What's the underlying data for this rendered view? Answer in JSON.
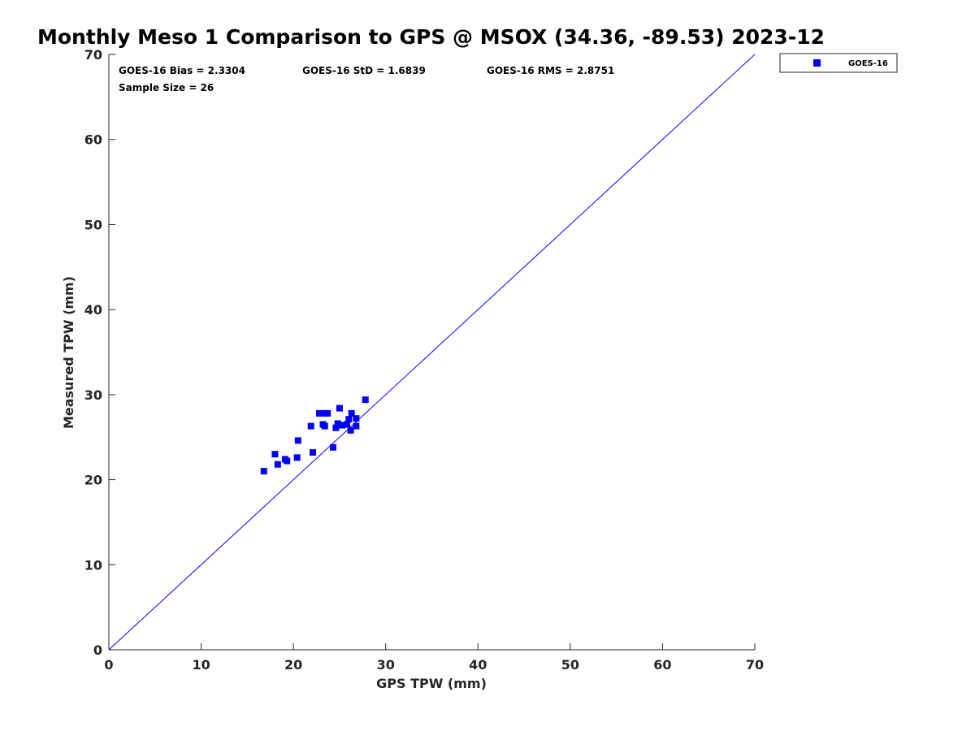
{
  "chart_data": {
    "type": "scatter",
    "title": "Monthly Meso 1 Comparison to GPS @ MSOX (34.36, -89.53) 2023-12",
    "xlabel": "GPS TPW (mm)",
    "ylabel": "Measured TPW (mm)",
    "xlim": [
      0,
      70
    ],
    "ylim": [
      0,
      70
    ],
    "xticks": [
      "0",
      "10",
      "20",
      "30",
      "40",
      "50",
      "60",
      "70"
    ],
    "yticks": [
      "0",
      "10",
      "20",
      "30",
      "40",
      "50",
      "60",
      "70"
    ],
    "grid": false,
    "legend_position": "top-right, outside",
    "stats": {
      "bias": "GOES-16 Bias = 2.3304",
      "std": "GOES-16 StD = 1.6839",
      "rms": "GOES-16 RMS = 2.8751",
      "sample_size": "Sample Size = 26"
    },
    "reference_line": {
      "x": [
        0,
        70
      ],
      "y": [
        0,
        70
      ],
      "color": "#0000ff"
    },
    "series": [
      {
        "name": "GOES-16",
        "color": "#0000ff",
        "marker": "square",
        "points": [
          [
            16.8,
            21.0
          ],
          [
            18.0,
            23.0
          ],
          [
            18.3,
            21.8
          ],
          [
            19.1,
            22.4
          ],
          [
            19.3,
            22.2
          ],
          [
            20.4,
            22.6
          ],
          [
            20.5,
            24.6
          ],
          [
            21.9,
            26.3
          ],
          [
            22.1,
            23.2
          ],
          [
            22.8,
            27.8
          ],
          [
            23.2,
            26.5
          ],
          [
            23.4,
            26.3
          ],
          [
            23.5,
            27.8
          ],
          [
            23.7,
            27.8
          ],
          [
            24.3,
            23.8
          ],
          [
            24.6,
            26.1
          ],
          [
            24.8,
            26.6
          ],
          [
            25.0,
            28.4
          ],
          [
            25.3,
            26.4
          ],
          [
            25.8,
            26.5
          ],
          [
            26.0,
            27.1
          ],
          [
            26.2,
            25.8
          ],
          [
            26.3,
            27.8
          ],
          [
            26.8,
            27.2
          ],
          [
            26.8,
            26.3
          ],
          [
            27.8,
            29.4
          ]
        ]
      }
    ]
  }
}
